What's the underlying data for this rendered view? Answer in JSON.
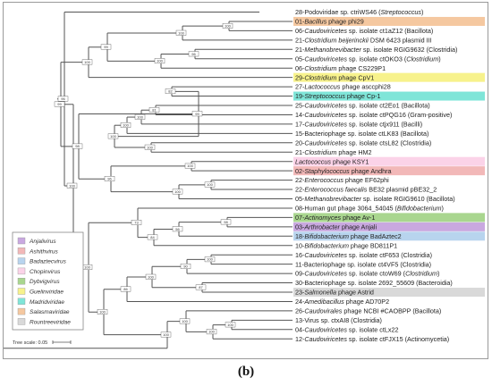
{
  "caption": "(b)",
  "leaves": [
    {
      "id": 28,
      "parts": [
        {
          "t": "28-Podoviridae sp. ctriWS46 (",
          "i": false
        },
        {
          "t": "Streptococcus",
          "i": true
        },
        {
          "t": ")",
          "i": false
        }
      ],
      "highlight": ""
    },
    {
      "id": 1,
      "parts": [
        {
          "t": "01-",
          "i": false
        },
        {
          "t": "Bacillus",
          "i": true
        },
        {
          "t": " phage phi29",
          "i": false
        }
      ],
      "highlight": "#f5c8a0"
    },
    {
      "id": 6,
      "parts": [
        {
          "t": "06-",
          "i": false
        },
        {
          "t": "Caudoviricetes",
          "i": true
        },
        {
          "t": " sp. isolate ct1aZ12 (Bacillota)",
          "i": false
        }
      ],
      "highlight": ""
    },
    {
      "id": 21,
      "parts": [
        {
          "t": "21-",
          "i": false
        },
        {
          "t": "Clostridium beijerinckii",
          "i": true
        },
        {
          "t": " DSM 6423 plasmid III",
          "i": false
        }
      ],
      "highlight": ""
    },
    {
      "id": 21,
      "parts": [
        {
          "t": "21-",
          "i": false
        },
        {
          "t": "Methanobrevibacter",
          "i": true
        },
        {
          "t": " sp. isolate RGIG9632 (Clostridia)",
          "i": false
        }
      ],
      "highlight": ""
    },
    {
      "id": 5,
      "parts": [
        {
          "t": "05-",
          "i": false
        },
        {
          "t": "Caudoviricetes",
          "i": true
        },
        {
          "t": " sp. isolate ctOKO3 (",
          "i": false
        },
        {
          "t": "Clostridium",
          "i": true
        },
        {
          "t": ")",
          "i": false
        }
      ],
      "highlight": ""
    },
    {
      "id": 6,
      "parts": [
        {
          "t": "06-",
          "i": false
        },
        {
          "t": "Clostridium",
          "i": true
        },
        {
          "t": " phage CS229P1",
          "i": false
        }
      ],
      "highlight": ""
    },
    {
      "id": 29,
      "parts": [
        {
          "t": "29-",
          "i": false
        },
        {
          "t": "Clostridium",
          "i": true
        },
        {
          "t": " phage CpV1",
          "i": false
        }
      ],
      "highlight": "#f7f28c"
    },
    {
      "id": 27,
      "parts": [
        {
          "t": "27-",
          "i": false
        },
        {
          "t": "Lactococcus",
          "i": true
        },
        {
          "t": " phage asccphi28",
          "i": false
        }
      ],
      "highlight": ""
    },
    {
      "id": 19,
      "parts": [
        {
          "t": "19-",
          "i": false
        },
        {
          "t": "Streptococcus",
          "i": true
        },
        {
          "t": " phage Cp-1",
          "i": false
        }
      ],
      "highlight": "#7fe5d8"
    },
    {
      "id": 25,
      "parts": [
        {
          "t": "25-",
          "i": false
        },
        {
          "t": "Caudoviricetes",
          "i": true
        },
        {
          "t": " sp. isolate ct2Eo1 (Bacillota)",
          "i": false
        }
      ],
      "highlight": ""
    },
    {
      "id": 14,
      "parts": [
        {
          "t": "14-",
          "i": false
        },
        {
          "t": "Caudoviricetes",
          "i": true
        },
        {
          "t": " sp. isolate ctPQG16 (Gram-positive)",
          "i": false
        }
      ],
      "highlight": ""
    },
    {
      "id": 17,
      "parts": [
        {
          "t": "17-",
          "i": false
        },
        {
          "t": "Caudoviricetes",
          "i": true
        },
        {
          "t": " sp. isolate ctjx911 (Bacilli)",
          "i": false
        }
      ],
      "highlight": ""
    },
    {
      "id": 15,
      "parts": [
        {
          "t": "15-Bacteriophage sp. isolate ctLK83 (Bacillota)",
          "i": false
        }
      ],
      "highlight": ""
    },
    {
      "id": 20,
      "parts": [
        {
          "t": "20-",
          "i": false
        },
        {
          "t": "Caudoviricetes",
          "i": true
        },
        {
          "t": " sp. isolate ctsL82 (Clostridia)",
          "i": false
        }
      ],
      "highlight": ""
    },
    {
      "id": 21,
      "parts": [
        {
          "t": "21-",
          "i": false
        },
        {
          "t": "Clostridium",
          "i": true
        },
        {
          "t": " phage HM2",
          "i": false
        }
      ],
      "highlight": ""
    },
    {
      "id": 0,
      "parts": [
        {
          "t": "Lactococcus",
          "i": true
        },
        {
          "t": " phage KSY1",
          "i": false
        }
      ],
      "highlight": "#fbd3e8"
    },
    {
      "id": 2,
      "parts": [
        {
          "t": "02-",
          "i": false
        },
        {
          "t": "Staphylococcus",
          "i": true
        },
        {
          "t": " phage Andhra",
          "i": false
        }
      ],
      "highlight": "#f2b8b8"
    },
    {
      "id": 22,
      "parts": [
        {
          "t": "22-",
          "i": false
        },
        {
          "t": "Enterococcus",
          "i": true
        },
        {
          "t": " phage EF62phi",
          "i": false
        }
      ],
      "highlight": ""
    },
    {
      "id": 22,
      "parts": [
        {
          "t": "22-",
          "i": false
        },
        {
          "t": "Enterococcus faecalis",
          "i": true
        },
        {
          "t": " BE32 plasmid pBE32_2",
          "i": false
        }
      ],
      "highlight": ""
    },
    {
      "id": 5,
      "parts": [
        {
          "t": "05-",
          "i": false
        },
        {
          "t": "Methanobrevibacter",
          "i": true
        },
        {
          "t": " sp. isolate RGIG9610 (Bacillota)",
          "i": false
        }
      ],
      "highlight": ""
    },
    {
      "id": 8,
      "parts": [
        {
          "t": "08-Human gut phage 3064_54045 (",
          "i": false
        },
        {
          "t": "Bifidobacterium",
          "i": true
        },
        {
          "t": ")",
          "i": false
        }
      ],
      "highlight": ""
    },
    {
      "id": 7,
      "parts": [
        {
          "t": "07-",
          "i": false
        },
        {
          "t": "Actinomyces",
          "i": true
        },
        {
          "t": " phage Av-1",
          "i": false
        }
      ],
      "highlight": "#a9d68f"
    },
    {
      "id": 3,
      "parts": [
        {
          "t": "03-",
          "i": false
        },
        {
          "t": "Arthrobacter",
          "i": true
        },
        {
          "t": " phage Anjali",
          "i": false
        }
      ],
      "highlight": "#c9a8e0"
    },
    {
      "id": 18,
      "parts": [
        {
          "t": "18-",
          "i": false
        },
        {
          "t": "Bifidobacterium",
          "i": true
        },
        {
          "t": " phage BadAztec2",
          "i": false
        }
      ],
      "highlight": "#b8d4ee"
    },
    {
      "id": 10,
      "parts": [
        {
          "t": "10-",
          "i": false
        },
        {
          "t": "Bifidobacterium",
          "i": true
        },
        {
          "t": " phage BD811P1",
          "i": false
        }
      ],
      "highlight": ""
    },
    {
      "id": 16,
      "parts": [
        {
          "t": "16-",
          "i": false
        },
        {
          "t": "Caudoviricetes",
          "i": true
        },
        {
          "t": " sp. isolate ctF653 (Clostridia)",
          "i": false
        }
      ],
      "highlight": ""
    },
    {
      "id": 11,
      "parts": [
        {
          "t": "11-Bacteriophage sp. isolate ct4VF5 (Clostridia)",
          "i": false
        }
      ],
      "highlight": ""
    },
    {
      "id": 9,
      "parts": [
        {
          "t": "09-",
          "i": false
        },
        {
          "t": "Caudoviricetes",
          "i": true
        },
        {
          "t": " sp. isolate ctoW69 (",
          "i": false
        },
        {
          "t": "Clostridium",
          "i": true
        },
        {
          "t": ")",
          "i": false
        }
      ],
      "highlight": ""
    },
    {
      "id": 30,
      "parts": [
        {
          "t": "30-Bacteriophage sp. isolate 2692_55609 (Bacteroidia)",
          "i": false
        }
      ],
      "highlight": ""
    },
    {
      "id": 23,
      "parts": [
        {
          "t": "23-",
          "i": false
        },
        {
          "t": "Salmonella",
          "i": true
        },
        {
          "t": " phage Astrid",
          "i": false
        }
      ],
      "highlight": "#d9d9d9"
    },
    {
      "id": 24,
      "parts": [
        {
          "t": "24-",
          "i": false
        },
        {
          "t": "Amedibacillus",
          "i": true
        },
        {
          "t": " phage AD70P2",
          "i": false
        }
      ],
      "highlight": ""
    },
    {
      "id": 26,
      "parts": [
        {
          "t": "26-",
          "i": false
        },
        {
          "t": "Caudovirales",
          "i": true
        },
        {
          "t": " phage NCBI #CAOBPP (Bacillota)",
          "i": false
        }
      ],
      "highlight": ""
    },
    {
      "id": 13,
      "parts": [
        {
          "t": "13-Virus sp. ctxAI8 (Clostridia)",
          "i": false
        }
      ],
      "highlight": ""
    },
    {
      "id": 4,
      "parts": [
        {
          "t": "04-",
          "i": false
        },
        {
          "t": "Caudoviricetes",
          "i": true
        },
        {
          "t": " sp. isolate ctLx22",
          "i": false
        }
      ],
      "highlight": ""
    },
    {
      "id": 12,
      "parts": [
        {
          "t": "12-",
          "i": false
        },
        {
          "t": "Caudoviricetes",
          "i": true
        },
        {
          "t": " sp. isolate ctFJX15 (Actinomycetia)",
          "i": false
        }
      ],
      "highlight": ""
    }
  ],
  "bootstrap_values": [
    "100",
    "100",
    "96",
    "100",
    "99",
    "100",
    "82",
    "81",
    "100",
    "100",
    "100",
    "100",
    "99",
    "100",
    "100",
    "100",
    "96",
    "98",
    "99",
    "98",
    "56",
    "84",
    "73",
    "100",
    "90",
    "87",
    "100",
    "86",
    "100",
    "100",
    "100",
    "100",
    "100"
  ],
  "legend": {
    "items": [
      {
        "label": "Anjalivirus",
        "color": "#c9a8e0"
      },
      {
        "label": "Ashithvirus",
        "color": "#f2b8b8"
      },
      {
        "label": "Badaztecvirus",
        "color": "#b8d4ee"
      },
      {
        "label": "Chopinvirus",
        "color": "#fbd3e8"
      },
      {
        "label": "Dybvigvirus",
        "color": "#a9d68f"
      },
      {
        "label": "Guelinviridae",
        "color": "#f7f28c"
      },
      {
        "label": "Madridviridae",
        "color": "#7fe5d8"
      },
      {
        "label": "Salasmaviridae",
        "color": "#f5c8a0"
      },
      {
        "label": "Rountreeviridae",
        "color": "#d9d9d9"
      }
    ]
  },
  "scale_bar": {
    "label": "Tree scale: 0.05"
  }
}
